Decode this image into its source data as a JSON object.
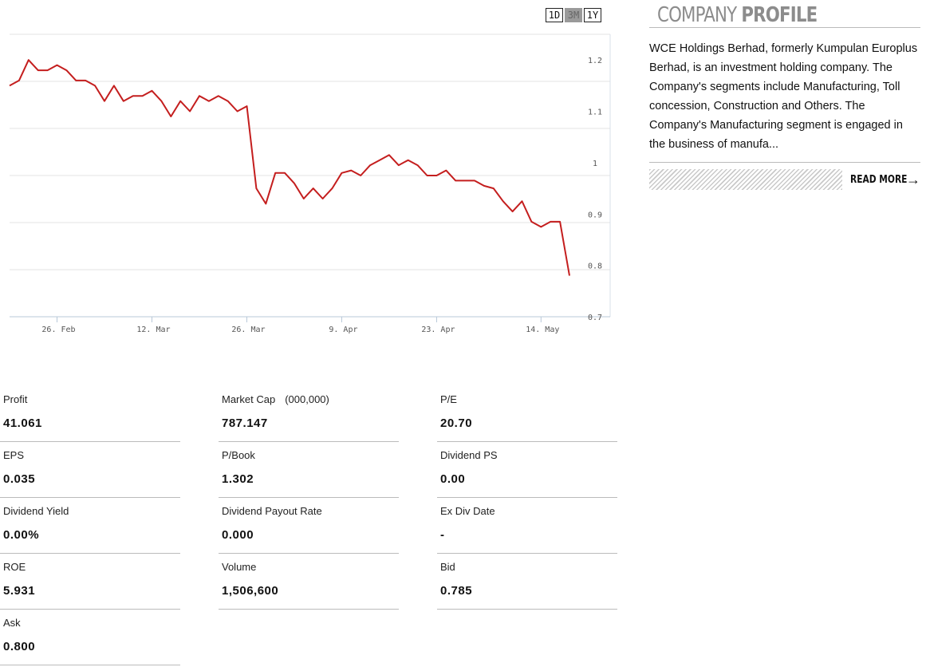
{
  "range_buttons": [
    {
      "label": "1D",
      "active": false
    },
    {
      "label": "3M",
      "active": true
    },
    {
      "label": "1Y",
      "active": false
    }
  ],
  "chart_data": {
    "type": "line",
    "title": "",
    "xlabel": "",
    "ylabel": "",
    "ylim": [
      0.7,
      1.25
    ],
    "y_ticks": [
      0.7,
      0.8,
      0.9,
      1,
      1.1,
      1.2
    ],
    "y_tick_labels": [
      "0.7",
      "0.8",
      "0.9",
      "1",
      "1.1",
      "1.2"
    ],
    "x_ticks": [
      {
        "label": "26. Feb",
        "index": 5
      },
      {
        "label": "12. Mar",
        "index": 15
      },
      {
        "label": "26. Mar",
        "index": 25
      },
      {
        "label": "9. Apr",
        "index": 35
      },
      {
        "label": "23. Apr",
        "index": 45
      },
      {
        "label": "14. May",
        "index": 56
      }
    ],
    "line_color": "#c41e1e",
    "grid": true,
    "series": [
      {
        "values": [
          1.15,
          1.16,
          1.2,
          1.18,
          1.18,
          1.19,
          1.18,
          1.16,
          1.16,
          1.15,
          1.12,
          1.15,
          1.12,
          1.13,
          1.13,
          1.14,
          1.12,
          1.09,
          1.12,
          1.1,
          1.13,
          1.12,
          1.13,
          1.12,
          1.1,
          1.11,
          0.95,
          0.92,
          0.98,
          0.98,
          0.96,
          0.93,
          0.95,
          0.93,
          0.95,
          0.98,
          0.985,
          0.975,
          0.995,
          1.005,
          1.015,
          0.995,
          1.005,
          0.995,
          0.975,
          0.975,
          0.985,
          0.965,
          0.965,
          0.965,
          0.955,
          0.95,
          0.925,
          0.905,
          0.925,
          0.885,
          0.875,
          0.885,
          0.885,
          0.78
        ]
      }
    ]
  },
  "profile": {
    "title_light": "COMPANY",
    "title_bold": "PROFILE",
    "text": "WCE Holdings Berhad, formerly Kumpulan Europlus Berhad, is an investment holding company. The Company's segments include Manufacturing, Toll concession, Construction and Others. The Company's Manufacturing segment is engaged in the business of manufa...",
    "read_more": "READ MORE",
    "arrow_glyph": "→"
  },
  "stats": [
    {
      "label": "Profit",
      "unit": "",
      "value": "41.061"
    },
    {
      "label": "Market Cap",
      "unit": "(000,000)",
      "value": "787.147"
    },
    {
      "label": "P/E",
      "unit": "",
      "value": "20.70"
    },
    {
      "label": "EPS",
      "unit": "",
      "value": "0.035"
    },
    {
      "label": "P/Book",
      "unit": "",
      "value": "1.302"
    },
    {
      "label": "Dividend PS",
      "unit": "",
      "value": "0.00"
    },
    {
      "label": "Dividend Yield",
      "unit": "",
      "value": "0.00%"
    },
    {
      "label": "Dividend Payout Rate",
      "unit": "",
      "value": "0.000"
    },
    {
      "label": "Ex Div Date",
      "unit": "",
      "value": "-"
    },
    {
      "label": "ROE",
      "unit": "",
      "value": "5.931"
    },
    {
      "label": "Volume",
      "unit": "",
      "value": "1,506,600"
    },
    {
      "label": "Bid",
      "unit": "",
      "value": "0.785"
    },
    {
      "label": "Ask",
      "unit": "",
      "value": "0.800"
    }
  ]
}
